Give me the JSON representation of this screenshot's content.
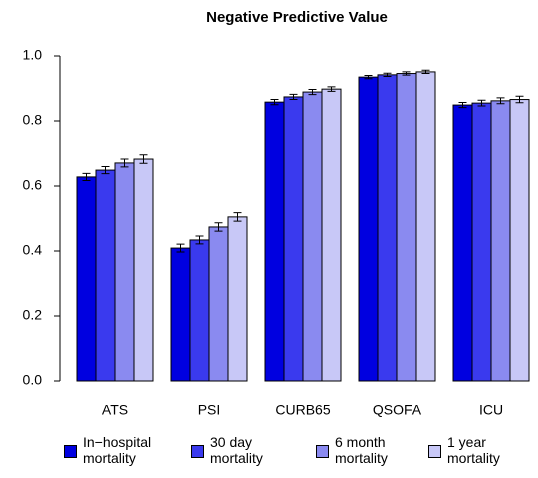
{
  "chart_data": {
    "type": "bar",
    "title": "Negative Predictive Value",
    "categories": [
      "ATS",
      "PSI",
      "CURB65",
      "QSOFA",
      "ICU"
    ],
    "series": [
      {
        "name": "In−hospital mortality",
        "color": "#0000e0",
        "values": [
          0.628,
          0.409,
          0.858,
          0.935,
          0.849
        ],
        "errors": [
          0.011,
          0.012,
          0.008,
          0.005,
          0.008
        ]
      },
      {
        "name": "30 day mortality",
        "color": "#3a3aee",
        "values": [
          0.649,
          0.434,
          0.874,
          0.942,
          0.855
        ],
        "errors": [
          0.011,
          0.012,
          0.008,
          0.005,
          0.009
        ]
      },
      {
        "name": "6 month mortality",
        "color": "#8a8af0",
        "values": [
          0.671,
          0.474,
          0.889,
          0.946,
          0.862
        ],
        "errors": [
          0.012,
          0.013,
          0.008,
          0.005,
          0.009
        ]
      },
      {
        "name": "1 year mortality",
        "color": "#c8c8f7",
        "values": [
          0.683,
          0.505,
          0.898,
          0.951,
          0.866
        ],
        "errors": [
          0.013,
          0.013,
          0.007,
          0.005,
          0.01
        ]
      }
    ],
    "ylim": [
      0,
      1
    ],
    "yticks": [
      {
        "value": 0,
        "label": "0.0"
      },
      {
        "value": 0.2,
        "label": "0.2"
      },
      {
        "value": 0.4,
        "label": "0.4"
      },
      {
        "value": 0.6,
        "label": "0.6"
      },
      {
        "value": 0.8,
        "label": "0.8"
      },
      {
        "value": 1,
        "label": "1.0"
      }
    ]
  }
}
